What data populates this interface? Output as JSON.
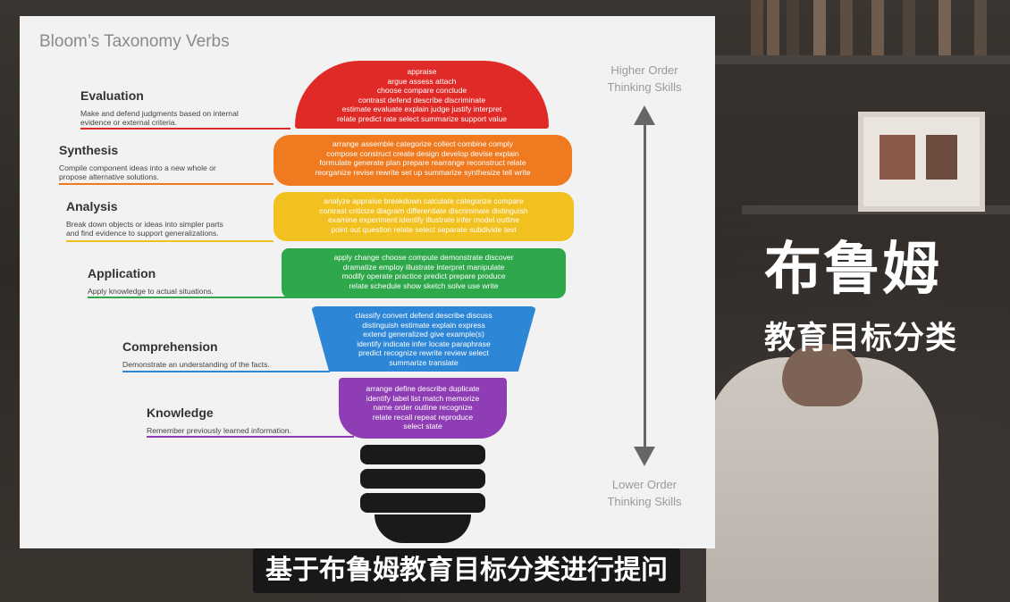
{
  "slide": {
    "title": "Bloom’s Taxonomy Verbs",
    "axis_top": [
      "Higher Order",
      "Thinking Skills"
    ],
    "axis_bottom": [
      "Lower Order",
      "Thinking Skills"
    ]
  },
  "levels": [
    {
      "name": "Evaluation",
      "description": [
        "Make and defend judgments based on internal",
        "evidence or external criteria."
      ],
      "color": "#e02a27",
      "verbs": [
        "appraise",
        "argue assess attach",
        "choose compare conclude",
        "contrast defend describe discriminate",
        "estimate evaluate explain judge justify interpret",
        "relate predict rate select summarize support value"
      ]
    },
    {
      "name": "Synthesis",
      "description": [
        "Compile component ideas into a new whole or",
        "propose alternative solutions."
      ],
      "color": "#ef7a20",
      "verbs": [
        "arrange assemble categorize collect combine comply",
        "compose construct create design develop devise explain",
        "formulate generate plan prepare rearrange reconstruct relate",
        "reorganize revise rewrite set up summarize synthesize tell write"
      ]
    },
    {
      "name": "Analysis",
      "description": [
        "Break down objects or ideas into simpler parts",
        "and find evidence to support generalizations."
      ],
      "color": "#f3c11f",
      "verbs": [
        "analyze appraise breakdown calculate categorize compare",
        "contrast criticize diagram differentiate discriminate distinguish",
        "examine experiment identify illustrate infer model outline",
        "point out question relate select separate subdivide test"
      ]
    },
    {
      "name": "Application",
      "description": [
        "Apply knowledge to actual situations."
      ],
      "color": "#2ea84a",
      "verbs": [
        "apply change choose compute demonstrate discover",
        "dramatize employ illustrate interpret manipulate",
        "modify operate practice predict prepare produce",
        "relate schedule show sketch solve use write"
      ]
    },
    {
      "name": "Comprehension",
      "description": [
        "Demonstrate an understanding of the facts."
      ],
      "color": "#2d86d6",
      "verbs": [
        "classify convert defend describe discuss",
        "distinguish estimate explain express",
        "extend generalized give example(s)",
        "identify indicate infer locate paraphrase",
        "predict recognize rewrite review select",
        "summarize translate"
      ]
    },
    {
      "name": "Knowledge",
      "description": [
        "Remember previously learned information."
      ],
      "color": "#8e3db5",
      "verbs": [
        "arrange define describe duplicate",
        "identify label list match memorize",
        "name order outline recognize",
        "relate recall repeat reproduce",
        "select state"
      ]
    }
  ],
  "overlay": {
    "cn_title": "布鲁姆",
    "cn_subtitle": "教育目标分类",
    "caption": "基于布鲁姆教育目标分类进行提问"
  }
}
